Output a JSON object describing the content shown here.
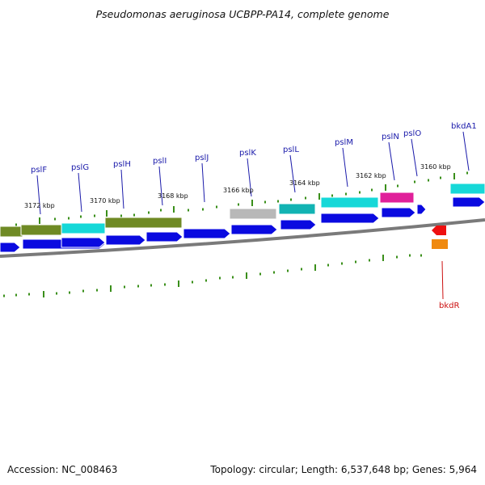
{
  "title": "Pseudomonas aeruginosa UCBPP-PA14, complete genome",
  "footer": {
    "accession": "Accession: NC_008463",
    "summary": "Topology: circular; Length: 6,537,648 bp; Genes: 5,964"
  },
  "colors": {
    "backbone": "#7a7a7a",
    "cds": "#0a0ae0",
    "feature_olive": "#6f8a24",
    "feature_cyan": "#16d8d8",
    "feature_gray": "#b8b8b8",
    "feature_teal": "#12b3b3",
    "feature_magenta": "#e0209a",
    "rev_red": "#ee1010",
    "rev_orange": "#f08a10",
    "tick": "#3a8f1a",
    "label_blue": "#1a1aaa",
    "label_red": "#cc1010"
  },
  "kbp_labels": [
    "3172 kbp",
    "3170 kbp",
    "3168 kbp",
    "3166 kbp",
    "3164 kbp",
    "3162 kbp",
    "3160 kbp"
  ],
  "gene_labels": [
    {
      "text": "pslF",
      "strand": "forward"
    },
    {
      "text": "pslG",
      "strand": "forward"
    },
    {
      "text": "pslH",
      "strand": "forward"
    },
    {
      "text": "pslI",
      "strand": "forward"
    },
    {
      "text": "pslJ",
      "strand": "forward"
    },
    {
      "text": "pslK",
      "strand": "forward"
    },
    {
      "text": "pslL",
      "strand": "forward"
    },
    {
      "text": "pslM",
      "strand": "forward"
    },
    {
      "text": "pslN",
      "strand": "forward"
    },
    {
      "text": "pslO",
      "strand": "forward"
    },
    {
      "text": "bkdA1",
      "strand": "forward"
    },
    {
      "text": "bkdR",
      "strand": "reverse"
    }
  ]
}
